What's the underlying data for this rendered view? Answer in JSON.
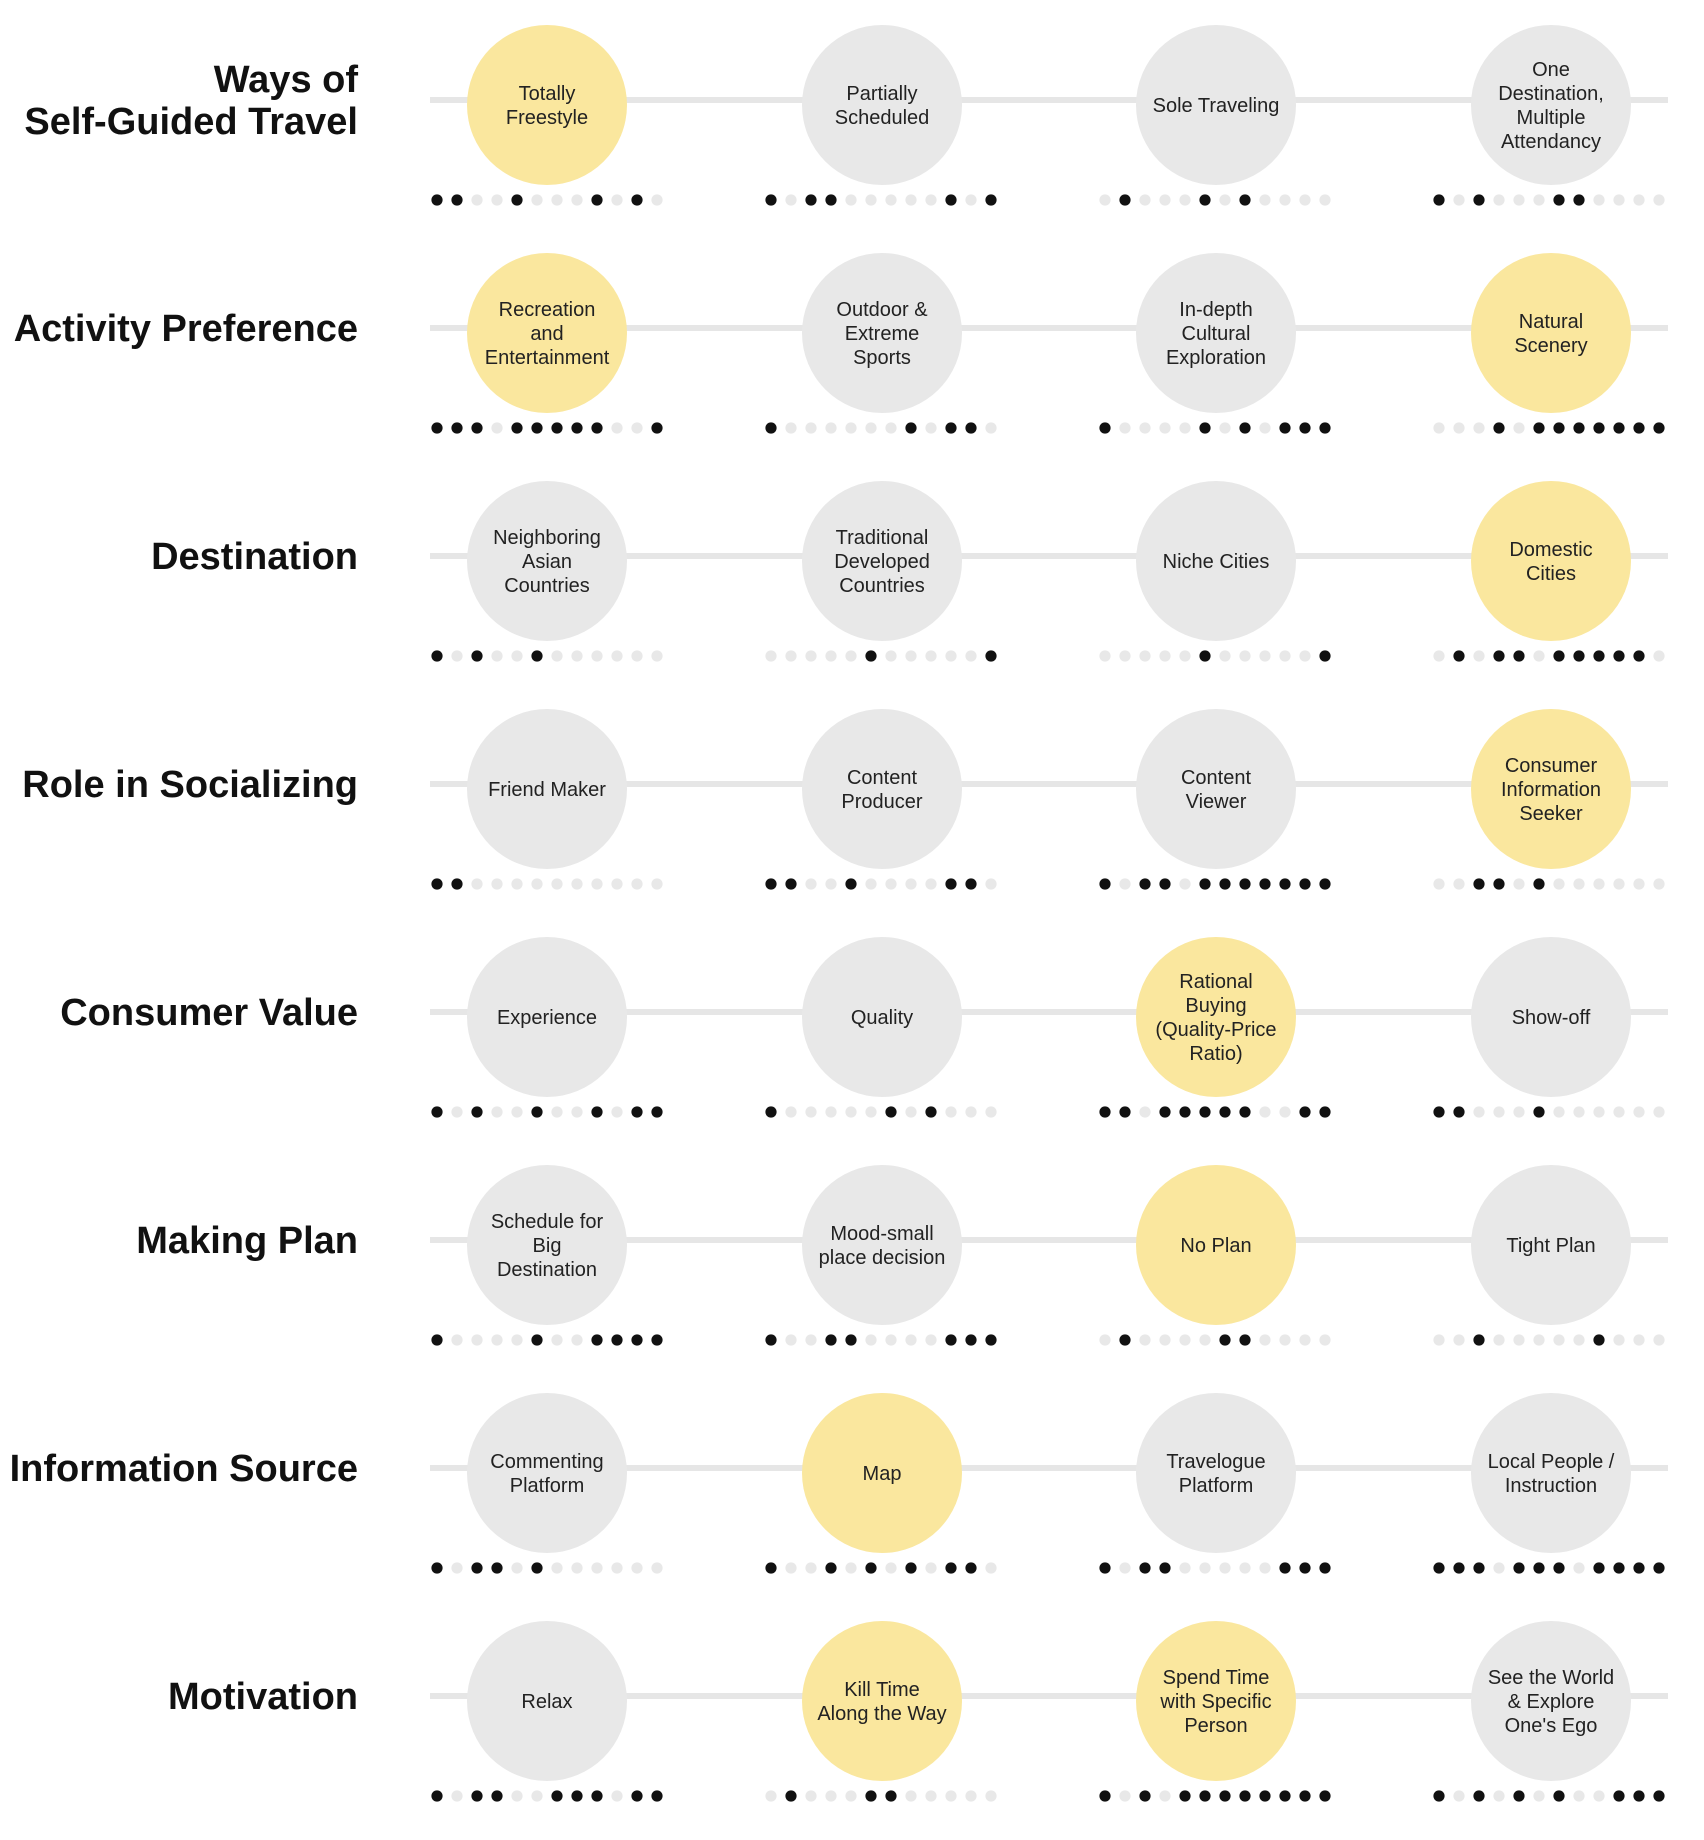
{
  "colors": {
    "line": "#e6e6e6",
    "circle_default": "#e8e8e8",
    "circle_highlight": "#fae79e",
    "dot_on": "#111111",
    "dot_off": "#e8e8e8"
  },
  "rows": [
    {
      "label": [
        "Ways of",
        "Self-Guided Travel"
      ],
      "options": [
        {
          "text": [
            "Totally",
            "Freestyle"
          ],
          "highlight": true,
          "dots": [
            1,
            1,
            0,
            0,
            1,
            0,
            0,
            0,
            1,
            0,
            1,
            0
          ]
        },
        {
          "text": [
            "Partially",
            "Scheduled"
          ],
          "highlight": false,
          "dots": [
            1,
            0,
            1,
            1,
            0,
            0,
            0,
            0,
            0,
            1,
            0,
            1
          ]
        },
        {
          "text": [
            "Sole Traveling"
          ],
          "highlight": false,
          "dots": [
            0,
            1,
            0,
            0,
            0,
            1,
            0,
            1,
            0,
            0,
            0,
            0
          ]
        },
        {
          "text": [
            "One",
            "Destination,",
            "Multiple",
            "Attendancy"
          ],
          "highlight": false,
          "dots": [
            1,
            0,
            1,
            0,
            0,
            0,
            1,
            1,
            0,
            0,
            0,
            0
          ]
        }
      ]
    },
    {
      "label": [
        "Activity Preference"
      ],
      "options": [
        {
          "text": [
            "Recreation",
            "and",
            "Entertainment"
          ],
          "highlight": true,
          "dots": [
            1,
            1,
            1,
            0,
            1,
            1,
            1,
            1,
            1,
            0,
            0,
            1
          ]
        },
        {
          "text": [
            "Outdoor &",
            "Extreme",
            "Sports"
          ],
          "highlight": false,
          "dots": [
            1,
            0,
            0,
            0,
            0,
            0,
            0,
            1,
            0,
            1,
            1,
            0
          ]
        },
        {
          "text": [
            "In-depth",
            "Cultural",
            "Exploration"
          ],
          "highlight": false,
          "dots": [
            1,
            0,
            0,
            0,
            0,
            1,
            0,
            1,
            0,
            1,
            1,
            1
          ]
        },
        {
          "text": [
            "Natural",
            "Scenery"
          ],
          "highlight": true,
          "dots": [
            0,
            0,
            0,
            1,
            0,
            1,
            1,
            1,
            1,
            1,
            1,
            1
          ]
        }
      ]
    },
    {
      "label": [
        "Destination"
      ],
      "options": [
        {
          "text": [
            "Neighboring",
            "Asian",
            "Countries"
          ],
          "highlight": false,
          "dots": [
            1,
            0,
            1,
            0,
            0,
            1,
            0,
            0,
            0,
            0,
            0,
            0
          ]
        },
        {
          "text": [
            "Traditional",
            "Developed",
            "Countries"
          ],
          "highlight": false,
          "dots": [
            0,
            0,
            0,
            0,
            0,
            1,
            0,
            0,
            0,
            0,
            0,
            1
          ]
        },
        {
          "text": [
            "Niche Cities"
          ],
          "highlight": false,
          "dots": [
            0,
            0,
            0,
            0,
            0,
            1,
            0,
            0,
            0,
            0,
            0,
            1
          ]
        },
        {
          "text": [
            "Domestic",
            "Cities"
          ],
          "highlight": true,
          "dots": [
            0,
            1,
            0,
            1,
            1,
            0,
            1,
            1,
            1,
            1,
            1,
            0
          ]
        }
      ]
    },
    {
      "label": [
        "Role in Socializing"
      ],
      "options": [
        {
          "text": [
            "Friend Maker"
          ],
          "highlight": false,
          "dots": [
            1,
            1,
            0,
            0,
            0,
            0,
            0,
            0,
            0,
            0,
            0,
            0
          ]
        },
        {
          "text": [
            "Content",
            "Producer"
          ],
          "highlight": false,
          "dots": [
            1,
            1,
            0,
            0,
            1,
            0,
            0,
            0,
            0,
            1,
            1,
            0
          ]
        },
        {
          "text": [
            "Content",
            "Viewer"
          ],
          "highlight": false,
          "dots": [
            1,
            0,
            1,
            1,
            0,
            1,
            1,
            1,
            1,
            1,
            1,
            1
          ]
        },
        {
          "text": [
            "Consumer",
            "Information",
            "Seeker"
          ],
          "highlight": true,
          "dots": [
            0,
            0,
            1,
            1,
            0,
            1,
            0,
            0,
            0,
            0,
            0,
            0
          ]
        }
      ]
    },
    {
      "label": [
        "Consumer Value"
      ],
      "options": [
        {
          "text": [
            "Experience"
          ],
          "highlight": false,
          "dots": [
            1,
            0,
            1,
            0,
            0,
            1,
            0,
            0,
            1,
            0,
            1,
            1
          ]
        },
        {
          "text": [
            "Quality"
          ],
          "highlight": false,
          "dots": [
            1,
            0,
            0,
            0,
            0,
            0,
            1,
            0,
            1,
            0,
            0,
            0
          ]
        },
        {
          "text": [
            "Rational",
            "Buying",
            "(Quality-Price",
            "Ratio)"
          ],
          "highlight": true,
          "dots": [
            1,
            1,
            0,
            1,
            1,
            1,
            1,
            1,
            0,
            0,
            1,
            1
          ]
        },
        {
          "text": [
            "Show-off"
          ],
          "highlight": false,
          "dots": [
            1,
            1,
            0,
            0,
            0,
            1,
            0,
            0,
            0,
            0,
            0,
            0
          ]
        }
      ]
    },
    {
      "label": [
        "Making Plan"
      ],
      "options": [
        {
          "text": [
            "Schedule for",
            "Big",
            "Destination"
          ],
          "highlight": false,
          "dots": [
            1,
            0,
            0,
            0,
            0,
            1,
            0,
            0,
            1,
            1,
            1,
            1
          ]
        },
        {
          "text": [
            "Mood-small",
            "place decision"
          ],
          "highlight": false,
          "dots": [
            1,
            0,
            0,
            1,
            1,
            0,
            0,
            0,
            0,
            1,
            1,
            1
          ]
        },
        {
          "text": [
            "No Plan"
          ],
          "highlight": true,
          "dots": [
            0,
            1,
            0,
            0,
            0,
            0,
            1,
            1,
            0,
            0,
            0,
            0
          ]
        },
        {
          "text": [
            "Tight Plan"
          ],
          "highlight": false,
          "dots": [
            0,
            0,
            1,
            0,
            0,
            0,
            0,
            0,
            1,
            0,
            0,
            0
          ]
        }
      ]
    },
    {
      "label": [
        "Information Source"
      ],
      "options": [
        {
          "text": [
            "Commenting",
            "Platform"
          ],
          "highlight": false,
          "dots": [
            1,
            0,
            1,
            1,
            0,
            1,
            0,
            0,
            0,
            0,
            0,
            0
          ]
        },
        {
          "text": [
            "Map"
          ],
          "highlight": true,
          "dots": [
            1,
            0,
            0,
            1,
            0,
            1,
            0,
            1,
            0,
            1,
            1,
            0
          ]
        },
        {
          "text": [
            "Travelogue",
            "Platform"
          ],
          "highlight": false,
          "dots": [
            1,
            0,
            1,
            1,
            0,
            0,
            0,
            0,
            0,
            1,
            1,
            1
          ]
        },
        {
          "text": [
            "Local People /",
            "Instruction"
          ],
          "highlight": false,
          "dots": [
            1,
            1,
            1,
            0,
            1,
            1,
            1,
            0,
            1,
            1,
            1,
            1
          ]
        }
      ]
    },
    {
      "label": [
        "Motivation"
      ],
      "options": [
        {
          "text": [
            "Relax"
          ],
          "highlight": false,
          "dots": [
            1,
            0,
            1,
            1,
            0,
            0,
            1,
            1,
            1,
            0,
            1,
            1
          ]
        },
        {
          "text": [
            "Kill Time",
            "Along the Way"
          ],
          "highlight": true,
          "dots": [
            0,
            1,
            0,
            0,
            0,
            1,
            1,
            0,
            0,
            0,
            0,
            0
          ]
        },
        {
          "text": [
            "Spend Time",
            "with Specific",
            "Person"
          ],
          "highlight": true,
          "dots": [
            1,
            0,
            1,
            0,
            1,
            1,
            1,
            1,
            1,
            1,
            1,
            1
          ]
        },
        {
          "text": [
            "See the World",
            "& Explore",
            "One's Ego"
          ],
          "highlight": false,
          "dots": [
            1,
            0,
            1,
            0,
            1,
            0,
            1,
            0,
            0,
            1,
            1,
            1
          ]
        }
      ]
    }
  ]
}
